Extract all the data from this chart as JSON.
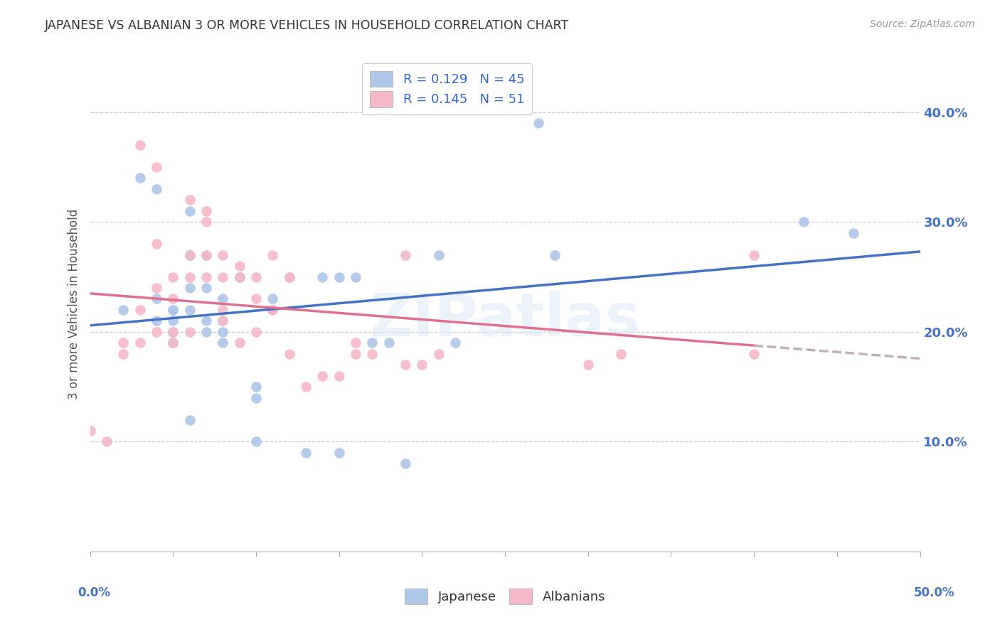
{
  "title": "JAPANESE VS ALBANIAN 3 OR MORE VEHICLES IN HOUSEHOLD CORRELATION CHART",
  "source": "Source: ZipAtlas.com",
  "ylabel": "3 or more Vehicles in Household",
  "watermark": "ZIPatlas",
  "xlim": [
    0.0,
    0.5
  ],
  "ylim": [
    0.0,
    0.45
  ],
  "yticks": [
    0.1,
    0.2,
    0.3,
    0.4
  ],
  "ytick_labels": [
    "10.0%",
    "20.0%",
    "30.0%",
    "40.0%"
  ],
  "japanese_R": 0.129,
  "japanese_N": 45,
  "albanian_R": 0.145,
  "albanian_N": 51,
  "japanese_color": "#aec6e8",
  "albanian_color": "#f4b8c8",
  "japanese_line_color": "#4472c4",
  "albanian_line_color": "#e07090",
  "trend_line_dash_color": "#c0b0b8",
  "background_color": "#ffffff",
  "grid_color": "#cccccc",
  "japanese_points_x": [
    0.02,
    0.03,
    0.04,
    0.04,
    0.04,
    0.05,
    0.05,
    0.05,
    0.05,
    0.05,
    0.06,
    0.06,
    0.06,
    0.06,
    0.06,
    0.07,
    0.07,
    0.07,
    0.07,
    0.08,
    0.08,
    0.08,
    0.08,
    0.09,
    0.09,
    0.1,
    0.1,
    0.1,
    0.11,
    0.11,
    0.12,
    0.13,
    0.14,
    0.15,
    0.15,
    0.16,
    0.17,
    0.18,
    0.19,
    0.21,
    0.22,
    0.27,
    0.28,
    0.43,
    0.46
  ],
  "japanese_points_y": [
    0.22,
    0.34,
    0.33,
    0.23,
    0.21,
    0.22,
    0.22,
    0.21,
    0.2,
    0.19,
    0.31,
    0.27,
    0.24,
    0.22,
    0.12,
    0.27,
    0.24,
    0.21,
    0.2,
    0.23,
    0.21,
    0.2,
    0.19,
    0.25,
    0.25,
    0.15,
    0.14,
    0.1,
    0.23,
    0.22,
    0.25,
    0.09,
    0.25,
    0.25,
    0.09,
    0.25,
    0.19,
    0.19,
    0.08,
    0.27,
    0.19,
    0.39,
    0.27,
    0.3,
    0.29
  ],
  "albanian_points_x": [
    0.0,
    0.01,
    0.02,
    0.02,
    0.03,
    0.03,
    0.03,
    0.04,
    0.04,
    0.04,
    0.04,
    0.05,
    0.05,
    0.05,
    0.05,
    0.06,
    0.06,
    0.06,
    0.06,
    0.07,
    0.07,
    0.07,
    0.07,
    0.08,
    0.08,
    0.08,
    0.08,
    0.09,
    0.09,
    0.09,
    0.1,
    0.1,
    0.1,
    0.11,
    0.11,
    0.12,
    0.12,
    0.13,
    0.14,
    0.15,
    0.16,
    0.16,
    0.17,
    0.19,
    0.19,
    0.2,
    0.21,
    0.3,
    0.32,
    0.4,
    0.4
  ],
  "albanian_points_y": [
    0.11,
    0.1,
    0.19,
    0.18,
    0.37,
    0.22,
    0.19,
    0.35,
    0.28,
    0.24,
    0.2,
    0.25,
    0.23,
    0.2,
    0.19,
    0.32,
    0.27,
    0.25,
    0.2,
    0.31,
    0.3,
    0.27,
    0.25,
    0.27,
    0.25,
    0.22,
    0.21,
    0.26,
    0.25,
    0.19,
    0.25,
    0.23,
    0.2,
    0.27,
    0.22,
    0.25,
    0.18,
    0.15,
    0.16,
    0.16,
    0.19,
    0.18,
    0.18,
    0.17,
    0.27,
    0.17,
    0.18,
    0.17,
    0.18,
    0.18,
    0.27
  ]
}
